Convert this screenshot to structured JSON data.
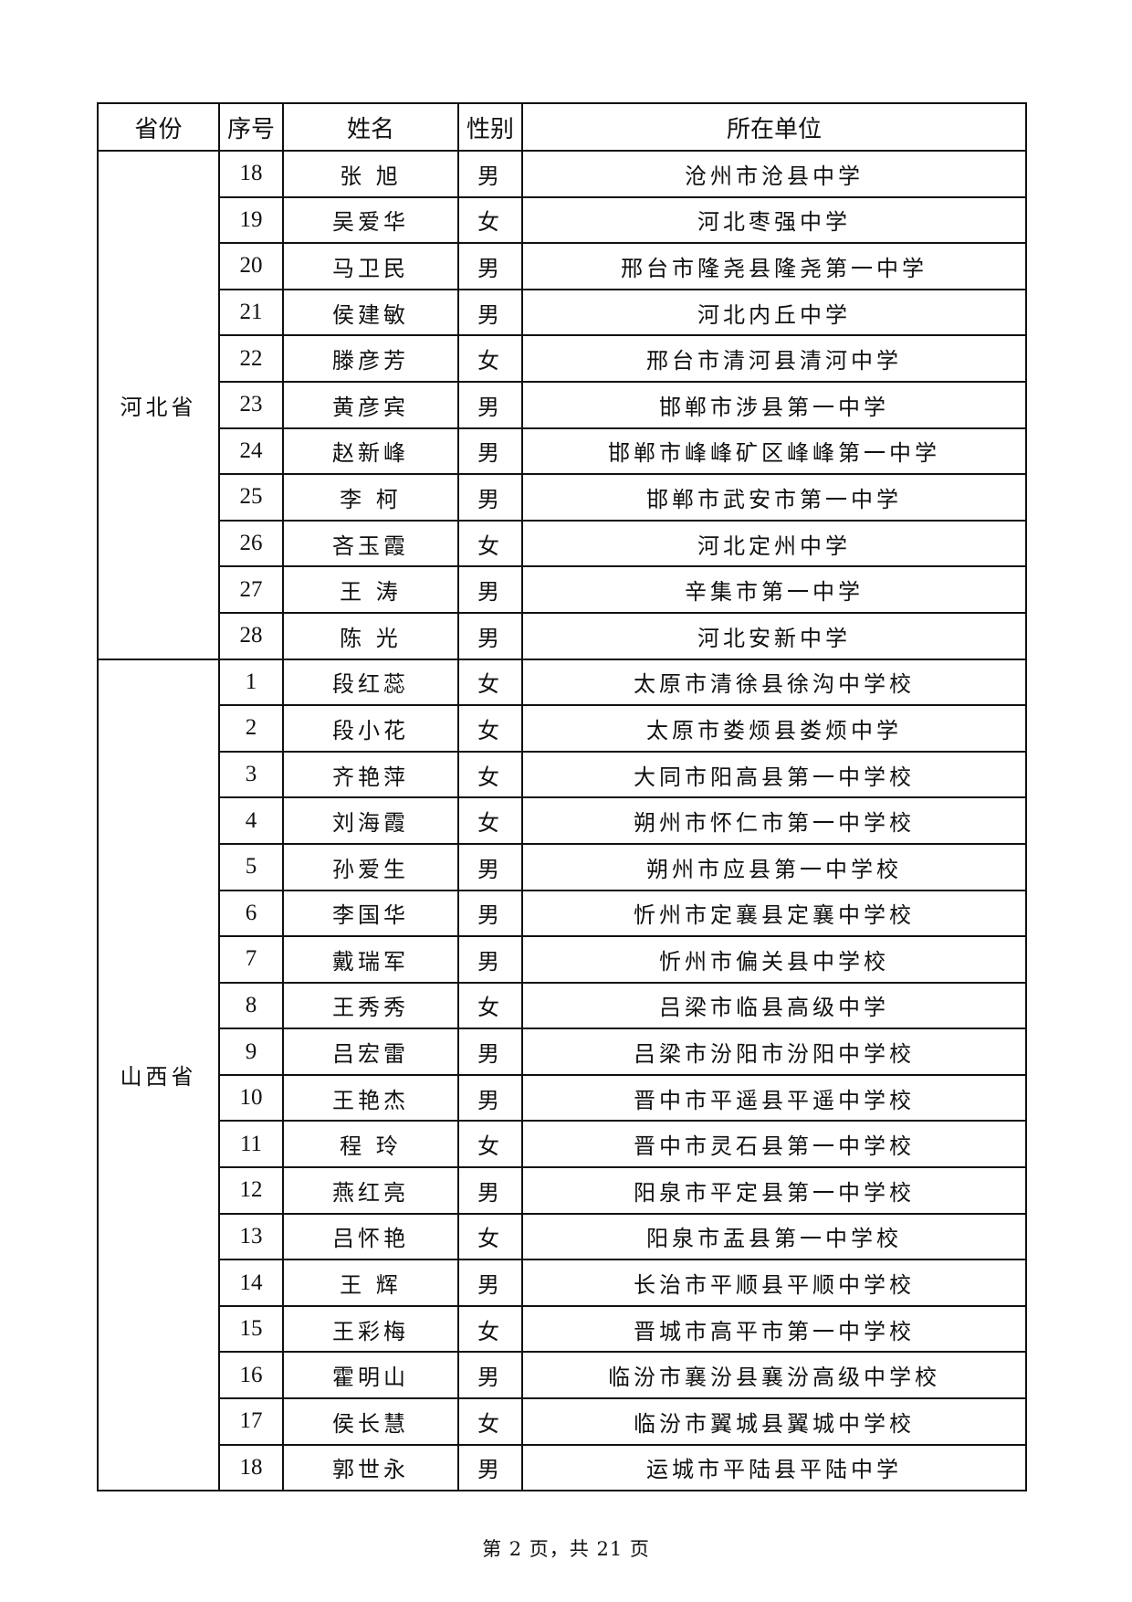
{
  "table": {
    "headers": [
      "省份",
      "序号",
      "姓名",
      "性别",
      "所在单位"
    ],
    "groups": [
      {
        "province": "河北省",
        "rows": [
          [
            "18",
            "张  旭",
            "男",
            "沧州市沧县中学"
          ],
          [
            "19",
            "吴爱华",
            "女",
            "河北枣强中学"
          ],
          [
            "20",
            "马卫民",
            "男",
            "邢台市隆尧县隆尧第一中学"
          ],
          [
            "21",
            "侯建敏",
            "男",
            "河北内丘中学"
          ],
          [
            "22",
            "滕彦芳",
            "女",
            "邢台市清河县清河中学"
          ],
          [
            "23",
            "黄彦宾",
            "男",
            "邯郸市涉县第一中学"
          ],
          [
            "24",
            "赵新峰",
            "男",
            "邯郸市峰峰矿区峰峰第一中学"
          ],
          [
            "25",
            "李  柯",
            "男",
            "邯郸市武安市第一中学"
          ],
          [
            "26",
            "吝玉霞",
            "女",
            "河北定州中学"
          ],
          [
            "27",
            "王  涛",
            "男",
            "辛集市第一中学"
          ],
          [
            "28",
            "陈  光",
            "男",
            "河北安新中学"
          ]
        ]
      },
      {
        "province": "山西省",
        "rows": [
          [
            "1",
            "段红蕊",
            "女",
            "太原市清徐县徐沟中学校"
          ],
          [
            "2",
            "段小花",
            "女",
            "太原市娄烦县娄烦中学"
          ],
          [
            "3",
            "齐艳萍",
            "女",
            "大同市阳高县第一中学校"
          ],
          [
            "4",
            "刘海霞",
            "女",
            "朔州市怀仁市第一中学校"
          ],
          [
            "5",
            "孙爱生",
            "男",
            "朔州市应县第一中学校"
          ],
          [
            "6",
            "李国华",
            "男",
            "忻州市定襄县定襄中学校"
          ],
          [
            "7",
            "戴瑞军",
            "男",
            "忻州市偏关县中学校"
          ],
          [
            "8",
            "王秀秀",
            "女",
            "吕梁市临县高级中学"
          ],
          [
            "9",
            "吕宏雷",
            "男",
            "吕梁市汾阳市汾阳中学校"
          ],
          [
            "10",
            "王艳杰",
            "男",
            "晋中市平遥县平遥中学校"
          ],
          [
            "11",
            "程  玲",
            "女",
            "晋中市灵石县第一中学校"
          ],
          [
            "12",
            "燕红亮",
            "男",
            "阳泉市平定县第一中学校"
          ],
          [
            "13",
            "吕怀艳",
            "女",
            "阳泉市盂县第一中学校"
          ],
          [
            "14",
            "王  辉",
            "男",
            "长治市平顺县平顺中学校"
          ],
          [
            "15",
            "王彩梅",
            "女",
            "晋城市高平市第一中学校"
          ],
          [
            "16",
            "霍明山",
            "男",
            "临汾市襄汾县襄汾高级中学校"
          ],
          [
            "17",
            "侯长慧",
            "女",
            "临汾市翼城县翼城中学校"
          ],
          [
            "18",
            "郭世永",
            "男",
            "运城市平陆县平陆中学"
          ]
        ]
      }
    ]
  },
  "footer": "第 2 页，共 21 页"
}
